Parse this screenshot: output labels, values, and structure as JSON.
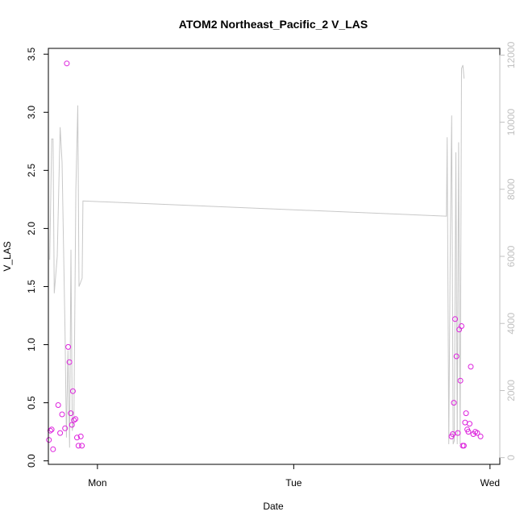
{
  "chart_data": {
    "type": "scatter",
    "title": "ATOM2 Northeast_Pacific_2 V_LAS",
    "xlabel": "Date",
    "ylabel": "V_LAS",
    "y2label": "",
    "x_domain_days": [
      -0.25,
      2.05
    ],
    "x_ticks": [
      {
        "label": "Mon",
        "value": 0
      },
      {
        "label": "Tue",
        "value": 1
      },
      {
        "label": "Wed",
        "value": 2
      }
    ],
    "ylim": [
      -0.03,
      3.55
    ],
    "y_ticks": [
      "0.0",
      "0.5",
      "1.0",
      "1.5",
      "2.0",
      "2.5",
      "3.0",
      "3.5"
    ],
    "y2lim": [
      -200,
      12200
    ],
    "y2_ticks": [
      "0",
      "2000",
      "4000",
      "6000",
      "8000",
      "10000",
      "12000"
    ],
    "scatter_color": "#dd22dd",
    "line_color": "#c8c8c8",
    "right_axis_color": "#c0c0c0",
    "points": [
      {
        "x": -0.247,
        "y": 0.18
      },
      {
        "x": -0.24,
        "y": 0.26
      },
      {
        "x": -0.233,
        "y": 0.27
      },
      {
        "x": -0.226,
        "y": 0.1
      },
      {
        "x": -0.2,
        "y": 0.48
      },
      {
        "x": -0.19,
        "y": 0.24
      },
      {
        "x": -0.18,
        "y": 0.4
      },
      {
        "x": -0.165,
        "y": 0.28
      },
      {
        "x": -0.156,
        "y": 3.42
      },
      {
        "x": -0.149,
        "y": 0.98
      },
      {
        "x": -0.143,
        "y": 0.85
      },
      {
        "x": -0.136,
        "y": 0.41
      },
      {
        "x": -0.13,
        "y": 0.31
      },
      {
        "x": -0.125,
        "y": 0.6
      },
      {
        "x": -0.12,
        "y": 0.35
      },
      {
        "x": -0.112,
        "y": 0.36
      },
      {
        "x": -0.104,
        "y": 0.2
      },
      {
        "x": -0.097,
        "y": 0.13
      },
      {
        "x": -0.085,
        "y": 0.21
      },
      {
        "x": -0.079,
        "y": 0.13
      },
      {
        "x": 1.804,
        "y": 0.21
      },
      {
        "x": 1.81,
        "y": 0.23
      },
      {
        "x": 1.816,
        "y": 0.5
      },
      {
        "x": 1.822,
        "y": 1.22
      },
      {
        "x": 1.829,
        "y": 0.9
      },
      {
        "x": 1.836,
        "y": 0.24
      },
      {
        "x": 1.843,
        "y": 1.13
      },
      {
        "x": 1.849,
        "y": 0.69
      },
      {
        "x": 1.855,
        "y": 1.16
      },
      {
        "x": 1.861,
        "y": 0.13
      },
      {
        "x": 1.867,
        "y": 0.13
      },
      {
        "x": 1.873,
        "y": 0.33
      },
      {
        "x": 1.878,
        "y": 0.41
      },
      {
        "x": 1.884,
        "y": 0.27
      },
      {
        "x": 1.89,
        "y": 0.25
      },
      {
        "x": 1.896,
        "y": 0.32
      },
      {
        "x": 1.902,
        "y": 0.81
      },
      {
        "x": 1.915,
        "y": 0.23
      },
      {
        "x": 1.925,
        "y": 0.25
      },
      {
        "x": 1.935,
        "y": 0.24
      },
      {
        "x": 1.952,
        "y": 0.21
      }
    ],
    "line": [
      {
        "x": -0.243,
        "y2": 5900
      },
      {
        "x": -0.233,
        "y2": 9500
      },
      {
        "x": -0.226,
        "y2": 9500
      },
      {
        "x": -0.22,
        "y2": 4900
      },
      {
        "x": -0.205,
        "y2": 6000
      },
      {
        "x": -0.19,
        "y2": 9850
      },
      {
        "x": -0.18,
        "y2": 8800
      },
      {
        "x": -0.165,
        "y2": 3700
      },
      {
        "x": -0.158,
        "y2": 600
      },
      {
        "x": -0.15,
        "y2": 3200
      },
      {
        "x": -0.142,
        "y2": 300
      },
      {
        "x": -0.135,
        "y2": 6200
      },
      {
        "x": -0.128,
        "y2": 800
      },
      {
        "x": -0.12,
        "y2": 1200
      },
      {
        "x": -0.11,
        "y2": 8000
      },
      {
        "x": -0.1,
        "y2": 10500
      },
      {
        "x": -0.094,
        "y2": 5100
      },
      {
        "x": -0.078,
        "y2": 5350
      },
      {
        "x": -0.074,
        "y2": 7650
      },
      {
        "x": 1.774,
        "y2": 7200
      },
      {
        "x": 1.778,
        "y2": 7200
      },
      {
        "x": 1.782,
        "y2": 9550
      },
      {
        "x": 1.79,
        "y2": 400
      },
      {
        "x": 1.798,
        "y2": 6500
      },
      {
        "x": 1.805,
        "y2": 10200
      },
      {
        "x": 1.812,
        "y2": 400
      },
      {
        "x": 1.818,
        "y2": 500
      },
      {
        "x": 1.826,
        "y2": 9100
      },
      {
        "x": 1.833,
        "y2": 400
      },
      {
        "x": 1.84,
        "y2": 9400
      },
      {
        "x": 1.848,
        "y2": 400
      },
      {
        "x": 1.855,
        "y2": 11600
      },
      {
        "x": 1.862,
        "y2": 11700
      },
      {
        "x": 1.868,
        "y2": 11300
      }
    ]
  }
}
